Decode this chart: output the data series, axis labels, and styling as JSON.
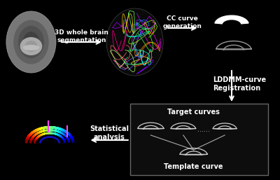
{
  "bg_color": "#000000",
  "fg_color": "#ffffff",
  "fig_width": 4.0,
  "fig_height": 2.57,
  "dpi": 100,
  "texts": {
    "3d_seg": "3D whole brain\nsegmentation",
    "cc_gen": "CC curve\ngeneration",
    "lddmm": "LDDMM-curve\nRegistration",
    "stat": "Statistical\nanalysis",
    "target": "Target curves",
    "template": "Template curve"
  },
  "text_fontsize_large": 7.0,
  "text_fontsize_small": 6.5,
  "arrow_color": "#ffffff"
}
